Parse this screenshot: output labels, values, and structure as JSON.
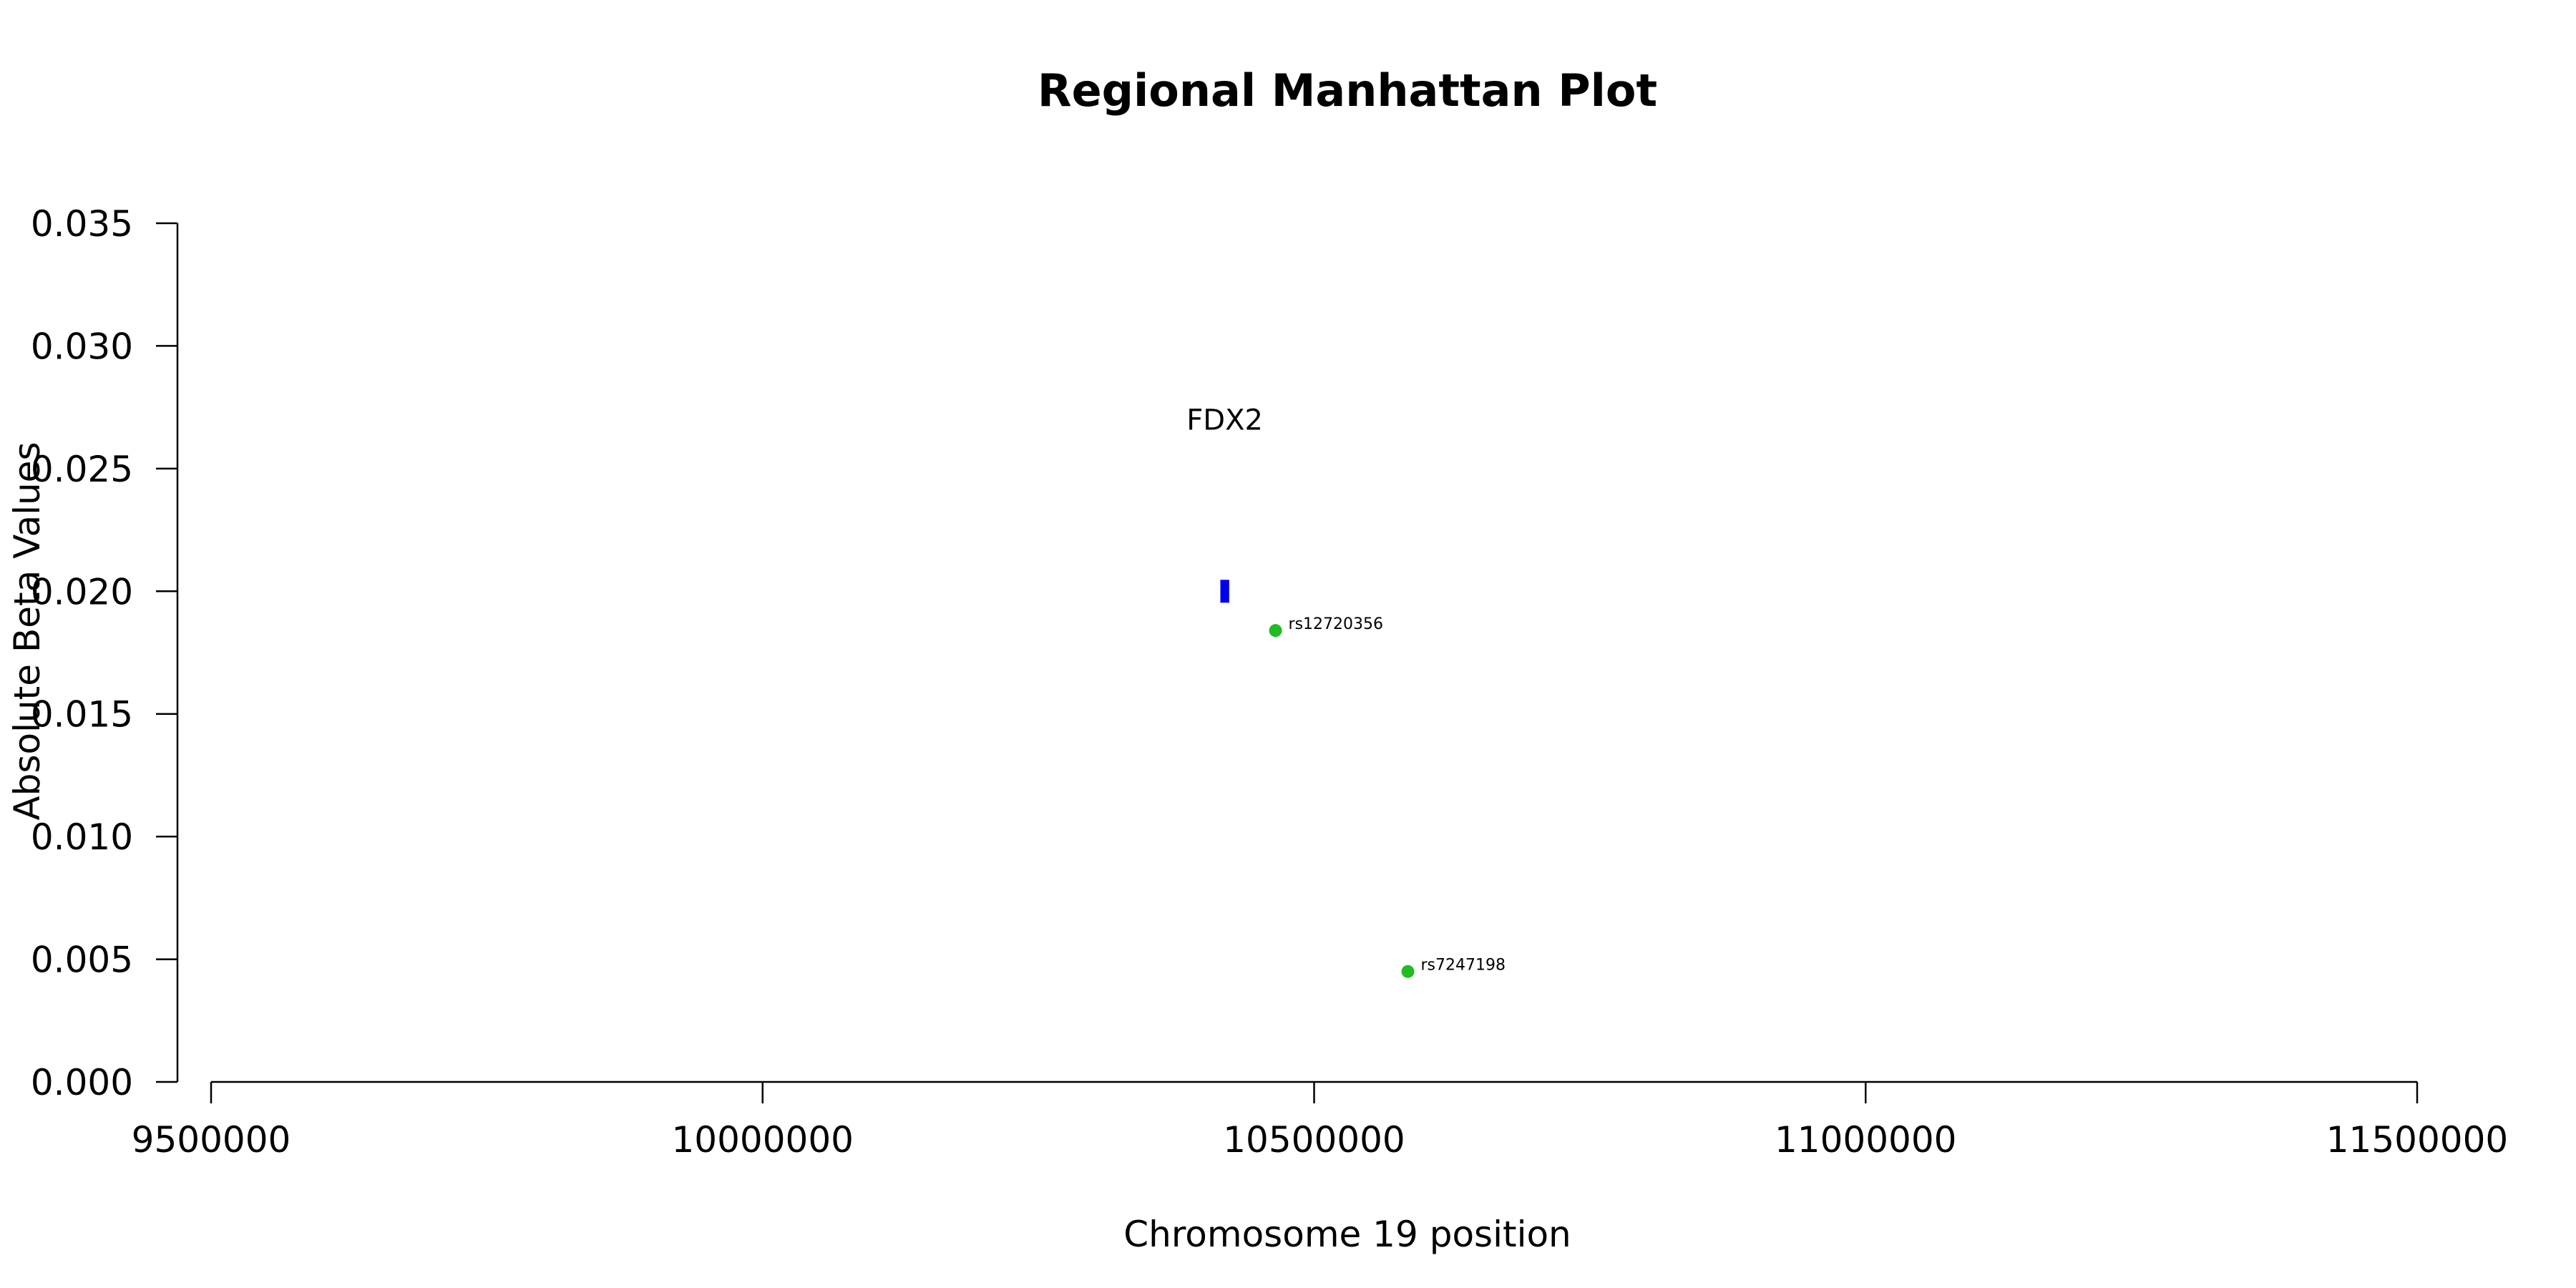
{
  "chart_data": {
    "type": "scatter",
    "title": "Regional Manhattan Plot",
    "xlabel": "Chromosome 19 position",
    "ylabel": "Absolute Beta Values",
    "xlim": [
      9500000,
      11500000
    ],
    "ylim": [
      0,
      0.035
    ],
    "x_ticks": [
      9500000,
      10000000,
      10500000,
      11000000,
      11500000
    ],
    "x_tick_labels": [
      "9500000",
      "10000000",
      "10500000",
      "11000000",
      "11500000"
    ],
    "y_ticks": [
      0,
      0.005,
      0.01,
      0.015,
      0.02,
      0.025,
      0.03,
      0.035
    ],
    "y_tick_labels": [
      "0.000",
      "0.005",
      "0.010",
      "0.015",
      "0.020",
      "0.025",
      "0.030",
      "0.035"
    ],
    "points": [
      {
        "label": "rs12720356",
        "x": 10465000,
        "y": 0.0184,
        "color": "#22bb22"
      },
      {
        "label": "rs7247198",
        "x": 10585000,
        "y": 0.0045,
        "color": "#22bb22"
      }
    ],
    "genes": [
      {
        "label": "FDX2",
        "start": 10415000,
        "end": 10423000,
        "y": 0.02,
        "color": "#0000ee"
      }
    ],
    "grid": false,
    "legend": "none"
  }
}
